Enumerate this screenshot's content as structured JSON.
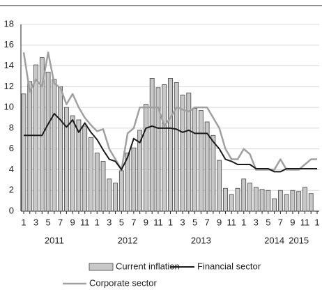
{
  "chart_data": {
    "type": "bar_line",
    "categories": [
      "1",
      null,
      "3",
      null,
      "5",
      null,
      "7",
      null,
      "9",
      null,
      "11",
      null,
      "1",
      null,
      "3",
      null,
      "5",
      null,
      "7",
      null,
      "9",
      null,
      "11",
      null,
      "1",
      null,
      "3",
      null,
      "5",
      null,
      "7",
      null,
      "9",
      null,
      "11",
      null,
      "1",
      null,
      "3",
      null,
      "5",
      null,
      "7",
      null,
      "9",
      null,
      "11",
      null,
      "1"
    ],
    "years": [
      null,
      null,
      null,
      null,
      null,
      "2011",
      null,
      null,
      null,
      null,
      null,
      null,
      null,
      null,
      null,
      null,
      null,
      "2012",
      null,
      null,
      null,
      null,
      null,
      null,
      null,
      null,
      null,
      null,
      null,
      "2013",
      null,
      null,
      null,
      null,
      null,
      null,
      null,
      null,
      null,
      null,
      null,
      "2014",
      null,
      null,
      null,
      "2015",
      null,
      null,
      null
    ],
    "series": [
      {
        "name": "Current inflation",
        "kind": "bar",
        "color": "#c8c8c8",
        "values": [
          11.3,
          12.5,
          14.1,
          14.8,
          13.4,
          12.7,
          12.0,
          10.0,
          9.2,
          8.8,
          8.2,
          7.1,
          5.6,
          4.8,
          3.1,
          2.7,
          3.9,
          5.6,
          6.1,
          7.8,
          10.3,
          12.8,
          11.9,
          12.2,
          12.8,
          12.4,
          11.2,
          11.4,
          9.9,
          9.7,
          8.6,
          7.3,
          4.9,
          2.2,
          1.6,
          2.2,
          3.1,
          2.7,
          2.3,
          2.1,
          2.0,
          1.2,
          2.0,
          1.6,
          2.0,
          1.9,
          2.3,
          1.7,
          null
        ]
      },
      {
        "name": "Financial sector",
        "kind": "line",
        "color": "#1a1a1a",
        "values": [
          7.3,
          7.3,
          7.3,
          7.3,
          8.4,
          9.4,
          8.8,
          8.1,
          8.8,
          7.6,
          8.5,
          7.6,
          6.9,
          5.9,
          5.0,
          4.8,
          4.0,
          5.2,
          7.0,
          6.6,
          8.0,
          8.2,
          8.0,
          8.0,
          8.0,
          7.9,
          7.6,
          7.8,
          7.5,
          7.5,
          7.5,
          6.7,
          6.0,
          5.0,
          4.8,
          4.5,
          4.5,
          4.5,
          4.1,
          4.1,
          4.1,
          3.8,
          3.8,
          4.1,
          4.1,
          4.1,
          4.1,
          4.1,
          4.1
        ]
      },
      {
        "name": "Corporate sector",
        "kind": "line",
        "color": "#a0a0a0",
        "values": [
          15.3,
          11.5,
          12.7,
          12.0,
          15.3,
          12.3,
          11.9,
          10.3,
          11.3,
          10.0,
          9.0,
          8.3,
          7.7,
          7.9,
          6.0,
          5.0,
          4.0,
          7.5,
          8.0,
          10.0,
          10.0,
          10.0,
          10.0,
          8.2,
          9.0,
          10.0,
          9.8,
          9.6,
          10.0,
          10.0,
          10.0,
          9.0,
          8.0,
          6.0,
          5.0,
          5.0,
          6.0,
          5.5,
          4.0,
          4.0,
          4.0,
          4.0,
          5.0,
          4.0,
          4.0,
          4.0,
          4.5,
          5.0,
          5.0
        ]
      }
    ],
    "ylim": [
      0,
      18
    ],
    "yticks": [
      0,
      2,
      4,
      6,
      8,
      10,
      12,
      14,
      16,
      18
    ],
    "grid": true
  }
}
